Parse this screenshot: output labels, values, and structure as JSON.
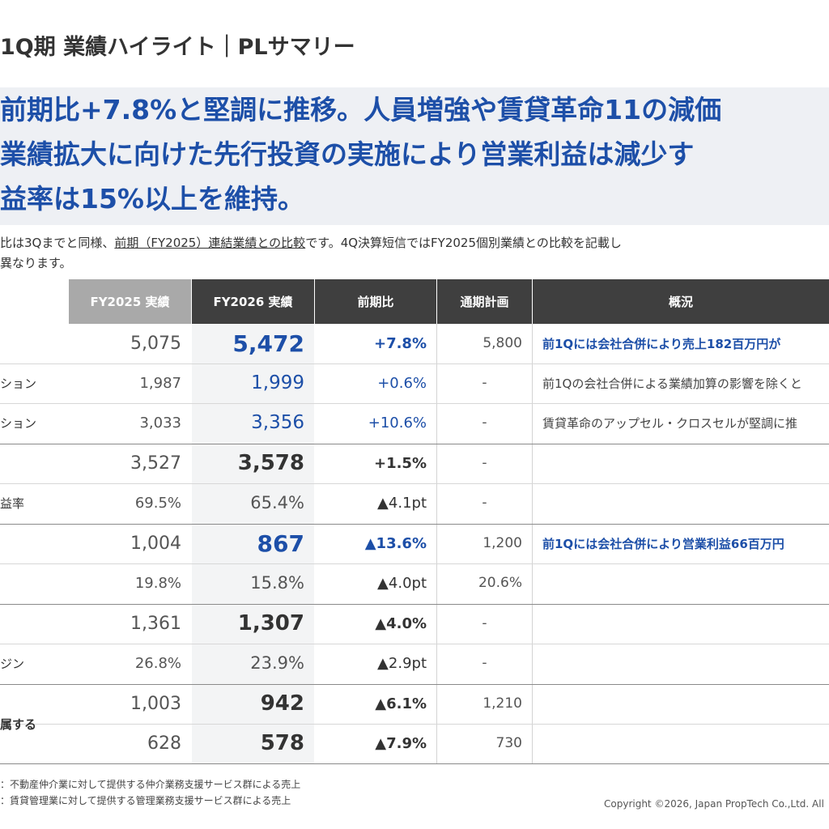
{
  "title": "1Q期 業績ハイライト｜PLサマリー",
  "headline": [
    "前期比+7.8%と堅調に推移。人員増強や賃貸革命11の減価",
    "業績拡大に向けた先行投資の実施により営業利益は減少す",
    "益率は15%以上を維持。"
  ],
  "note": {
    "line1_prefix": "比は3Qまでと同様、",
    "line1_underline": "前期（FY2025）連結業績との比較",
    "line1_suffix": "です。4Q決算短信ではFY2025個別業績との比較を記載し",
    "line2": "異なります。"
  },
  "table": {
    "headers": {
      "fy2025": "FY2025 実績",
      "fy2026": "FY2026 実績",
      "yoy": "前期比",
      "plan": "通期計画",
      "desc": "概況"
    },
    "colors": {
      "header_light": "#a9a9a9",
      "header_dark": "#3f3f3f",
      "accent": "#1d4fa8"
    },
    "rows": [
      {
        "label": "",
        "fy2025": "5,075",
        "fy2026": "5,472",
        "yoy": "+7.8%",
        "plan": "5,800",
        "desc": "前1Qには会社合併により売上182百万円が"
      },
      {
        "label": "ション",
        "fy2025": "1,987",
        "fy2026": "1,999",
        "yoy": "+0.6%",
        "plan": "-",
        "desc": "前1Qの会社合併による業績加算の影響を除くと"
      },
      {
        "label": "ション",
        "fy2025": "3,033",
        "fy2026": "3,356",
        "yoy": "+10.6%",
        "plan": "-",
        "desc": "賃貸革命のアップセル・クロスセルが堅調に推"
      },
      {
        "label": "",
        "fy2025": "3,527",
        "fy2026": "3,578",
        "yoy": "+1.5%",
        "plan": "-",
        "desc": ""
      },
      {
        "label": "益率",
        "fy2025": "69.5%",
        "fy2026": "65.4%",
        "yoy": "▲4.1pt",
        "plan": "-",
        "desc": ""
      },
      {
        "label": "",
        "fy2025": "1,004",
        "fy2026": "867",
        "yoy": "▲13.6%",
        "plan": "1,200",
        "desc": "前1Qには会社合併により営業利益66百万円"
      },
      {
        "label": "",
        "fy2025": "19.8%",
        "fy2026": "15.8%",
        "yoy": "▲4.0pt",
        "plan": "20.6%",
        "desc": ""
      },
      {
        "label": "",
        "fy2025": "1,361",
        "fy2026": "1,307",
        "yoy": "▲4.0%",
        "plan": "-",
        "desc": ""
      },
      {
        "label": "ジン",
        "fy2025": "26.8%",
        "fy2026": "23.9%",
        "yoy": "▲2.9pt",
        "plan": "-",
        "desc": ""
      },
      {
        "label": "",
        "fy2025": "1,003",
        "fy2026": "942",
        "yoy": "▲6.1%",
        "plan": "1,210",
        "desc": ""
      },
      {
        "label": "属する",
        "fy2025": "628",
        "fy2026": "578",
        "yoy": "▲7.9%",
        "plan": "730",
        "desc": ""
      }
    ]
  },
  "footnotes": [
    "：不動産仲介業に対して提供する仲介業務支援サービス群による売上",
    "：賃貸管理業に対して提供する管理業務支援サービス群による売上"
  ],
  "copyright": "Copyright ©2026, Japan PropTech Co.,Ltd. All"
}
